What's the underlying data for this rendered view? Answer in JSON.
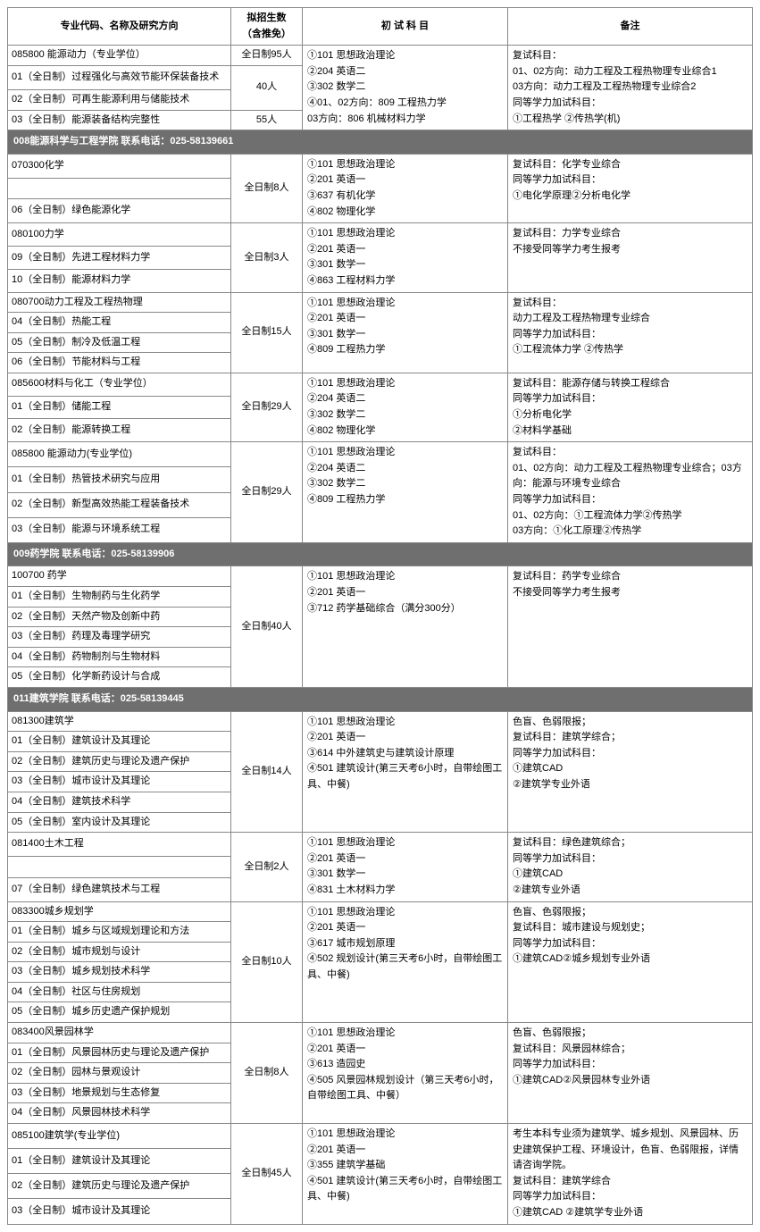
{
  "headers": {
    "col1": "专业代码、名称及研究方向",
    "col2": "拟招生数\n（含推免）",
    "col3": "初 试 科 目",
    "col4": "备注"
  },
  "sections": [
    {
      "type": "block",
      "majors": [
        "085800 能源动力（专业学位）",
        "01（全日制）过程强化与高效节能环保装备技术",
        "02（全日制）可再生能源利用与储能技术",
        "03（全日制）能源装备结构完整性"
      ],
      "quotas": [
        "全日制95人",
        "40人",
        "55人"
      ],
      "quotaSpans": [
        1,
        2,
        1
      ],
      "exam": "①101 思想政治理论\n②204 英语二\n③302 数学二\n④01、02方向：809 工程热力学\n03方向：806 机械材料力学",
      "note": "复试科目：\n01、02方向：动力工程及工程热物理专业综合1\n03方向：动力工程及工程热物理专业综合2\n同等学力加试科目：\n①工程热学 ②传热学(机)"
    },
    {
      "type": "section",
      "title": "008能源科学与工程学院 联系电话：025-58139661"
    },
    {
      "type": "block",
      "majors": [
        "070300化学",
        "",
        "06（全日制）绿色能源化学"
      ],
      "quota": "全日制8人",
      "exam": "①101 思想政治理论\n②201 英语一\n③637 有机化学\n④802 物理化学",
      "note": "复试科目：化学专业综合\n同等学力加试科目：\n①电化学原理②分析电化学"
    },
    {
      "type": "block",
      "majors": [
        "080100力学",
        "09（全日制）先进工程材料力学",
        "10（全日制）能源材料力学"
      ],
      "quota": "全日制3人",
      "exam": "①101 思想政治理论\n②201 英语一\n③301 数学一\n④863 工程材料力学",
      "note": "复试科目：力学专业综合\n不接受同等学力考生报考"
    },
    {
      "type": "block",
      "majors": [
        "080700动力工程及工程热物理",
        "04（全日制）热能工程",
        "05（全日制）制冷及低温工程",
        "06（全日制）节能材料与工程"
      ],
      "quota": "全日制15人",
      "exam": "①101 思想政治理论\n②201 英语一\n③301 数学一\n④809 工程热力学",
      "note": "复试科目：\n动力工程及工程热物理专业综合\n同等学力加试科目：\n①工程流体力学 ②传热学"
    },
    {
      "type": "block",
      "majors": [
        "085600材料与化工（专业学位）",
        "01（全日制）储能工程",
        "02（全日制）能源转换工程"
      ],
      "quota": "全日制29人",
      "exam": "①101 思想政治理论\n②204 英语二\n③302 数学二\n④802 物理化学",
      "note": "复试科目：能源存储与转换工程综合\n同等学力加试科目：\n①分析电化学\n②材料学基础"
    },
    {
      "type": "block",
      "majors": [
        "085800 能源动力(专业学位)",
        "01（全日制）热管技术研究与应用",
        "02（全日制）新型高效热能工程装备技术",
        "03（全日制）能源与环境系统工程"
      ],
      "quota": "全日制29人",
      "exam": "①101 思想政治理论\n②204 英语二\n③302 数学二\n④809 工程热力学",
      "note": "复试科目：\n01、02方向：动力工程及工程热物理专业综合；03方向：能源与环境专业综合\n同等学力加试科目：\n01、02方向：①工程流体力学②传热学\n03方向：①化工原理②传热学"
    },
    {
      "type": "section",
      "title": "009药学院 联系电话：025-58139906"
    },
    {
      "type": "block",
      "majors": [
        "100700 药学",
        "01（全日制）生物制药与生化药学",
        "02（全日制）天然产物及创新中药",
        "03（全日制）药理及毒理学研究",
        "04（全日制）药物制剂与生物材料",
        "05（全日制）化学新药设计与合成"
      ],
      "quota": "全日制40人",
      "exam": "①101 思想政治理论\n②201 英语一\n③712 药学基础综合（满分300分）",
      "note": "复试科目：药学专业综合\n不接受同等学力考生报考"
    },
    {
      "type": "section",
      "title": "011建筑学院 联系电话：025-58139445"
    },
    {
      "type": "block",
      "majors": [
        "081300建筑学",
        "01（全日制）建筑设计及其理论",
        "02（全日制）建筑历史与理论及遗产保护",
        "03（全日制）城市设计及其理论",
        "04（全日制）建筑技术科学",
        "05（全日制）室内设计及其理论"
      ],
      "quota": "全日制14人",
      "exam": "①101 思想政治理论\n②201 英语一\n③614 中外建筑史与建筑设计原理\n④501 建筑设计(第三天考6小时，自带绘图工具、中餐)",
      "note": "色盲、色弱限报；\n复试科目：建筑学综合；\n同等学力加试科目：\n①建筑CAD\n②建筑学专业外语"
    },
    {
      "type": "block",
      "majors": [
        "081400土木工程",
        "",
        "07（全日制）绿色建筑技术与工程"
      ],
      "quota": "全日制2人",
      "exam": "①101 思想政治理论\n②201 英语一\n③301 数学一\n④831 土木材料力学",
      "note": "复试科目：绿色建筑综合；\n同等学力加试科目：\n①建筑CAD\n②建筑专业外语"
    },
    {
      "type": "block",
      "majors": [
        "083300城乡规划学",
        "01（全日制）城乡与区域规划理论和方法",
        "02（全日制）城市规划与设计",
        "03（全日制）城乡规划技术科学",
        "04（全日制）社区与住房规划",
        "05（全日制）城乡历史遗产保护规划"
      ],
      "quota": "全日制10人",
      "exam": "①101 思想政治理论\n②201 英语一\n③617 城市规划原理\n④502 规划设计(第三天考6小时，自带绘图工具、中餐)",
      "note": "色盲、色弱限报；\n复试科目：城市建设与规划史；\n同等学力加试科目：\n①建筑CAD②城乡规划专业外语"
    },
    {
      "type": "block",
      "majors": [
        "083400风景园林学",
        "01（全日制）风景园林历史与理论及遗产保护",
        "02（全日制）园林与景观设计",
        "03（全日制）地景规划与生态修复",
        "04（全日制）风景园林技术科学"
      ],
      "quota": "全日制8人",
      "exam": "①101 思想政治理论\n②201 英语一\n③613 造园史\n④505 风景园林规划设计（第三天考6小时，自带绘图工具、中餐）",
      "note": "色盲、色弱限报；\n复试科目：风景园林综合；\n同等学力加试科目：\n①建筑CAD②风景园林专业外语"
    },
    {
      "type": "block",
      "majors": [
        "085100建筑学(专业学位)",
        "01（全日制）建筑设计及其理论",
        "02（全日制）建筑历史与理论及遗产保护",
        "03（全日制）城市设计及其理论"
      ],
      "quota": "全日制45人",
      "exam": "①101 思想政治理论\n②201 英语一\n③355 建筑学基础\n④501 建筑设计(第三天考6小时，自带绘图工具、中餐)",
      "note": "考生本科专业须为建筑学、城乡规划、风景园林、历史建筑保护工程、环境设计，色盲、色弱限报，详情请咨询学院。\n复试科目：建筑学综合\n同等学力加试科目：\n①建筑CAD ②建筑学专业外语"
    }
  ]
}
